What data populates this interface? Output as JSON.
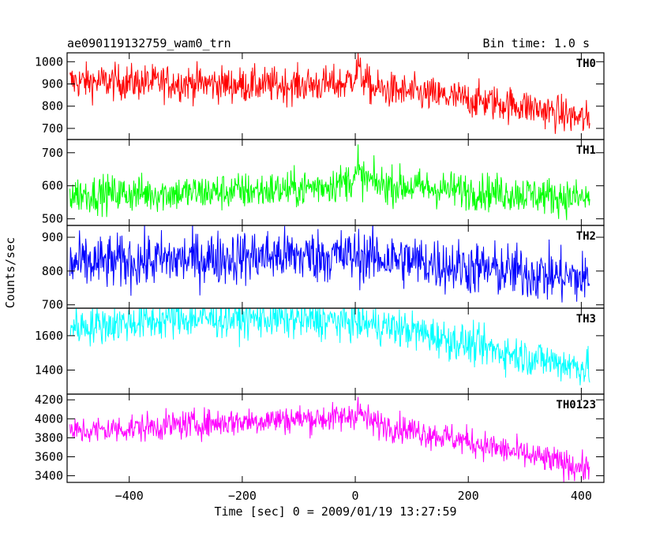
{
  "header": {
    "left_title": "ae090119132759_wam0_trn",
    "right_title": "Bin time: 1.0 s"
  },
  "chart_data": {
    "type": "line",
    "xlabel": "Time [sec] 0 = 2009/01/19 13:27:59",
    "ylabel": "Counts/sec",
    "xlim": [
      -510,
      440
    ],
    "x_range": [
      -505,
      415
    ],
    "x_ticks": [
      -400,
      -200,
      0,
      200,
      400
    ],
    "grid": false,
    "panels": [
      {
        "name": "TH0",
        "color": "#ff0000",
        "ylim": [
          650,
          1040
        ],
        "y_ticks": [
          700,
          800,
          900,
          1000
        ],
        "profile": [
          [
            -505,
            910
          ],
          [
            -300,
            905
          ],
          [
            -200,
            895
          ],
          [
            -100,
            895
          ],
          [
            -20,
            900
          ],
          [
            5,
            950
          ],
          [
            30,
            880
          ],
          [
            100,
            860
          ],
          [
            200,
            830
          ],
          [
            300,
            800
          ],
          [
            415,
            735
          ]
        ],
        "noise": 40,
        "spike_at": 5,
        "spike_to": 1040
      },
      {
        "name": "TH1",
        "color": "#00ff00",
        "ylim": [
          480,
          740
        ],
        "y_ticks": [
          500,
          600,
          700
        ],
        "profile": [
          [
            -505,
            575
          ],
          [
            -300,
            578
          ],
          [
            -100,
            590
          ],
          [
            -20,
            610
          ],
          [
            5,
            630
          ],
          [
            40,
            605
          ],
          [
            150,
            590
          ],
          [
            300,
            575
          ],
          [
            415,
            560
          ]
        ],
        "noise": 28,
        "spike_at": 5,
        "spike_to": 725
      },
      {
        "name": "TH2",
        "color": "#0000ff",
        "ylim": [
          690,
          935
        ],
        "y_ticks": [
          700,
          800,
          900
        ],
        "profile": [
          [
            -505,
            820
          ],
          [
            -300,
            835
          ],
          [
            -150,
            845
          ],
          [
            0,
            845
          ],
          [
            100,
            830
          ],
          [
            200,
            810
          ],
          [
            300,
            795
          ],
          [
            415,
            775
          ]
        ],
        "noise": 40,
        "spike_at": null,
        "spike_to": null
      },
      {
        "name": "TH3",
        "color": "#00ffff",
        "ylim": [
          1260,
          1760
        ],
        "y_ticks": [
          1400,
          1600
        ],
        "profile": [
          [
            -505,
            1650
          ],
          [
            -300,
            1700
          ],
          [
            -150,
            1700
          ],
          [
            0,
            1680
          ],
          [
            100,
            1630
          ],
          [
            200,
            1550
          ],
          [
            300,
            1480
          ],
          [
            415,
            1410
          ]
        ],
        "noise": 55,
        "spike_at": null,
        "spike_to": null
      },
      {
        "name": "TH0123",
        "color": "#ff00ff",
        "ylim": [
          3330,
          4260
        ],
        "y_ticks": [
          3400,
          3600,
          3800,
          4000,
          4200
        ],
        "profile": [
          [
            -505,
            3860
          ],
          [
            -300,
            3940
          ],
          [
            -150,
            3990
          ],
          [
            -20,
            4010
          ],
          [
            5,
            4070
          ],
          [
            30,
            3960
          ],
          [
            100,
            3880
          ],
          [
            200,
            3760
          ],
          [
            300,
            3620
          ],
          [
            415,
            3470
          ]
        ],
        "noise": 75,
        "spike_at": 5,
        "spike_to": 4230
      }
    ]
  }
}
